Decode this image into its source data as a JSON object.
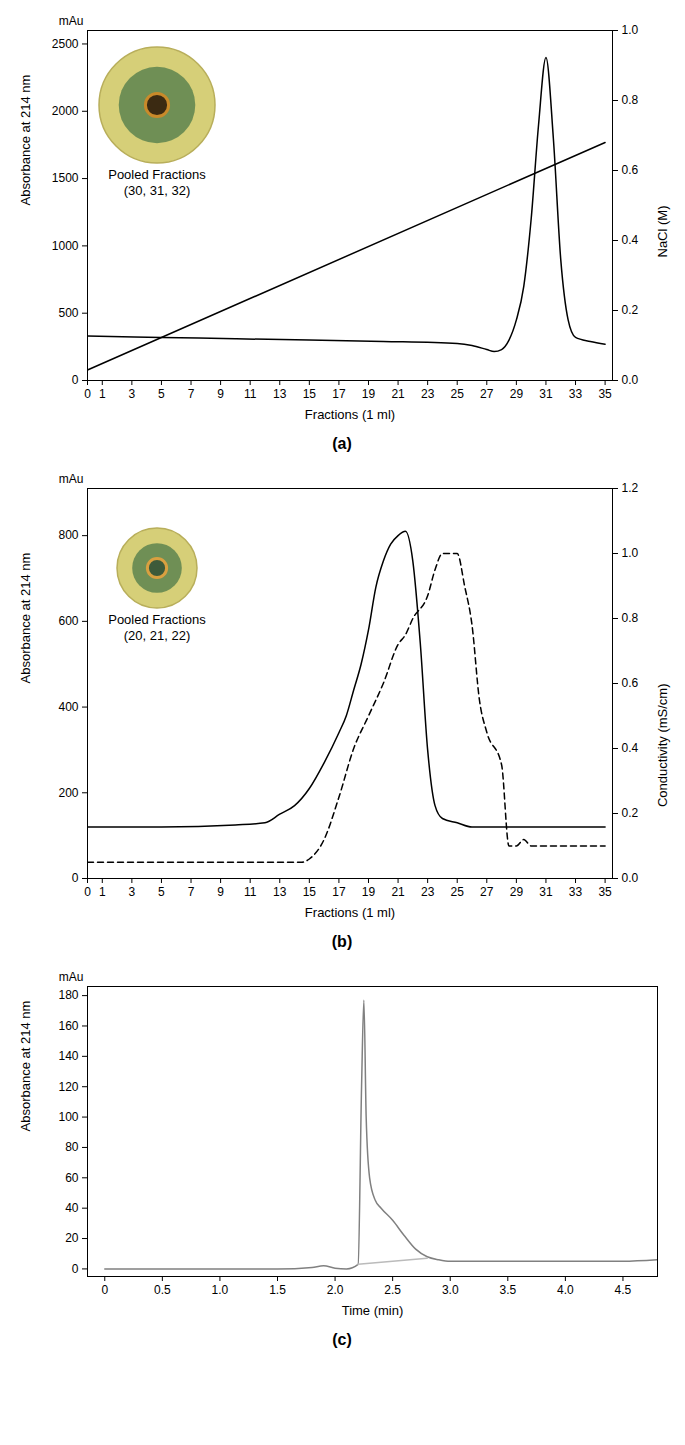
{
  "chart_data": [
    {
      "type": "line",
      "panel_label": "(a)",
      "y_unit": "mAu",
      "x_label": "Fractions (1 ml)",
      "y_label": "Absorbance at 214 nm",
      "y2_label": "NaCl (M)",
      "xlim": [
        0,
        35.5
      ],
      "xticks": [
        0,
        1,
        3,
        5,
        7,
        9,
        11,
        13,
        15,
        17,
        19,
        21,
        23,
        25,
        27,
        29,
        31,
        33,
        35
      ],
      "ylim": [
        0,
        2600
      ],
      "yticks": [
        0,
        500,
        1000,
        1500,
        2000,
        2500
      ],
      "y2lim": [
        0,
        1
      ],
      "y2ticks": [
        {
          "value": 0,
          "label": "0.0"
        },
        0.2,
        0.4,
        0.6,
        0.8,
        {
          "value": 1,
          "label": "1.0"
        }
      ],
      "annotations": [
        "Pooled Fractions",
        "(30, 31, 32)"
      ],
      "series": [
        {
          "color": "#000000",
          "line_style": "solid",
          "x": [
            0,
            5,
            10,
            15,
            20,
            25,
            26,
            27,
            27.5,
            28,
            28.5,
            29,
            29.5,
            30,
            30.5,
            31,
            31.5,
            32,
            32.5,
            33,
            34,
            35
          ],
          "values": [
            330,
            320,
            310,
            300,
            290,
            275,
            260,
            230,
            215,
            230,
            300,
            450,
            700,
            1200,
            1900,
            2400,
            1800,
            900,
            450,
            320,
            290,
            270
          ]
        },
        {
          "color": "#000000",
          "line_style": "solid",
          "axis": "y2",
          "x": [
            0,
            35
          ],
          "values": [
            0.03,
            0.68
          ]
        }
      ]
    },
    {
      "type": "line",
      "panel_label": "(b)",
      "y_unit": "mAu",
      "x_label": "Fractions (1 ml)",
      "y_label": "Absorbance at 214 nm",
      "y2_label": "Conductivity (mS/cm)",
      "xlim": [
        0,
        35.5
      ],
      "xticks": [
        0,
        1,
        3,
        5,
        7,
        9,
        11,
        13,
        15,
        17,
        19,
        21,
        23,
        25,
        27,
        29,
        31,
        33,
        35
      ],
      "ylim": [
        0,
        910
      ],
      "yticks": [
        0,
        200,
        400,
        600,
        800
      ],
      "y2lim": [
        0,
        1.2
      ],
      "y2ticks": [
        {
          "value": 0,
          "label": "0.0"
        },
        0.2,
        0.4,
        0.6,
        0.8,
        {
          "value": 1,
          "label": "1.0"
        },
        1.2
      ],
      "annotations": [
        "Pooled Fractions",
        "(20, 21, 22)"
      ],
      "series": [
        {
          "color": "#000000",
          "line_style": "solid",
          "x": [
            0,
            5,
            10,
            12,
            13,
            14,
            15,
            16,
            17,
            17.5,
            18,
            18.5,
            19,
            19.5,
            20,
            20.5,
            21,
            21.5,
            22,
            22.5,
            23,
            23.5,
            24,
            25,
            26,
            30,
            35
          ],
          "values": [
            120,
            120,
            125,
            130,
            150,
            170,
            210,
            270,
            340,
            380,
            440,
            500,
            580,
            680,
            740,
            780,
            800,
            810,
            740,
            550,
            300,
            170,
            140,
            130,
            120,
            120,
            120
          ]
        },
        {
          "color": "#000000",
          "line_style": "dashed",
          "axis": "y2",
          "x": [
            0,
            5,
            10,
            14.5,
            15,
            16,
            17,
            18,
            19,
            20,
            21,
            21.5,
            22,
            23,
            23.5,
            24,
            25,
            25.5,
            26,
            26.5,
            27,
            28,
            28.5,
            29,
            29.5,
            30,
            35
          ],
          "values": [
            0.05,
            0.05,
            0.05,
            0.05,
            0.06,
            0.12,
            0.25,
            0.4,
            0.5,
            0.6,
            0.72,
            0.75,
            0.8,
            0.87,
            0.95,
            1.0,
            1.0,
            0.9,
            0.78,
            0.55,
            0.45,
            0.35,
            0.1,
            0.1,
            0.12,
            0.1,
            0.1
          ]
        }
      ]
    },
    {
      "type": "line",
      "panel_label": "(c)",
      "y_unit": "mAu",
      "x_label": "Time (min)",
      "y_label": "Absorbance at 214 nm",
      "xlim": [
        -0.15,
        4.8
      ],
      "xticks": [
        0,
        0.5,
        {
          "value": 1,
          "label": "1.0"
        },
        1.5,
        {
          "value": 2,
          "label": "2.0"
        },
        2.5,
        {
          "value": 3,
          "label": "3.0"
        },
        3.5,
        {
          "value": 4,
          "label": "4.0"
        },
        4.5
      ],
      "ylim": [
        -5,
        186
      ],
      "yticks": [
        0,
        20,
        40,
        60,
        80,
        100,
        120,
        140,
        160,
        180
      ],
      "series": [
        {
          "color": "#808080",
          "line_style": "solid",
          "x": [
            0,
            1.5,
            1.8,
            1.9,
            2.0,
            2.1,
            2.2,
            2.23,
            2.25,
            2.27,
            2.3,
            2.35,
            2.4,
            2.5,
            2.6,
            2.7,
            2.8,
            2.9,
            3.0,
            3.5,
            4.0,
            4.5,
            4.8
          ],
          "values": [
            0,
            0,
            1,
            2,
            0.5,
            0,
            3,
            120,
            177,
            100,
            60,
            45,
            40,
            32,
            22,
            13,
            8,
            6,
            5,
            5,
            5,
            5,
            6
          ]
        },
        {
          "color": "#bbbbbb",
          "line_style": "solid",
          "x": [
            2.2,
            2.8
          ],
          "values": [
            3,
            7
          ]
        }
      ]
    }
  ]
}
